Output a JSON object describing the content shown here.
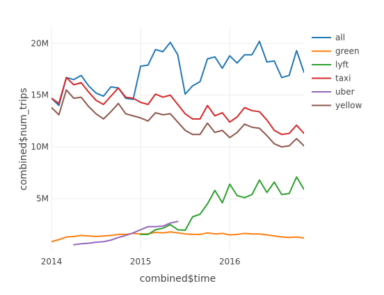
{
  "chart_data": {
    "type": "line",
    "xlabel": "combined$time",
    "ylabel": "combined$num_trips",
    "xlim": [
      "2014-01",
      "2016-11"
    ],
    "ylim": [
      0,
      21500000
    ],
    "x_ticks": [
      {
        "value": "2014-01",
        "label": "2014"
      },
      {
        "value": "2015-01",
        "label": "2015"
      },
      {
        "value": "2016-01",
        "label": "2016"
      }
    ],
    "y_ticks": [
      {
        "value": 5000000,
        "label": "5M"
      },
      {
        "value": 10000000,
        "label": "10M"
      },
      {
        "value": 15000000,
        "label": "15M"
      },
      {
        "value": 20000000,
        "label": "20M"
      }
    ],
    "grid": true,
    "legend": "top-right",
    "series": [
      {
        "name": "all",
        "color": "#1f77b4",
        "points": [
          [
            "2014-01",
            14700000
          ],
          [
            "2014-02",
            14000000
          ],
          [
            "2014-03",
            16700000
          ],
          [
            "2014-04",
            16500000
          ],
          [
            "2014-05",
            16900000
          ],
          [
            "2014-06",
            15900000
          ],
          [
            "2014-07",
            15200000
          ],
          [
            "2014-08",
            14900000
          ],
          [
            "2014-09",
            15800000
          ],
          [
            "2014-10",
            15700000
          ],
          [
            "2014-11",
            14700000
          ],
          [
            "2014-12",
            14600000
          ],
          [
            "2015-01",
            17800000
          ],
          [
            "2015-02",
            17900000
          ],
          [
            "2015-03",
            19400000
          ],
          [
            "2015-04",
            19200000
          ],
          [
            "2015-05",
            20100000
          ],
          [
            "2015-06",
            18900000
          ],
          [
            "2015-07",
            15100000
          ],
          [
            "2015-08",
            15900000
          ],
          [
            "2015-09",
            16300000
          ],
          [
            "2015-10",
            18500000
          ],
          [
            "2015-11",
            18700000
          ],
          [
            "2015-12",
            17600000
          ],
          [
            "2016-01",
            18800000
          ],
          [
            "2016-02",
            18100000
          ],
          [
            "2016-03",
            18900000
          ],
          [
            "2016-04",
            18900000
          ],
          [
            "2016-05",
            20200000
          ],
          [
            "2016-06",
            18200000
          ],
          [
            "2016-07",
            18300000
          ],
          [
            "2016-08",
            16700000
          ],
          [
            "2016-09",
            16900000
          ],
          [
            "2016-10",
            19300000
          ],
          [
            "2016-11",
            17200000
          ],
          [
            "2016-12",
            17900000
          ]
        ]
      },
      {
        "name": "green",
        "color": "#ff7f0e",
        "points": [
          [
            "2014-01",
            850000
          ],
          [
            "2014-02",
            1050000
          ],
          [
            "2014-03",
            1300000
          ],
          [
            "2014-04",
            1350000
          ],
          [
            "2014-05",
            1450000
          ],
          [
            "2014-06",
            1400000
          ],
          [
            "2014-07",
            1350000
          ],
          [
            "2014-08",
            1400000
          ],
          [
            "2014-09",
            1450000
          ],
          [
            "2014-10",
            1550000
          ],
          [
            "2014-11",
            1550000
          ],
          [
            "2014-12",
            1650000
          ],
          [
            "2015-01",
            1600000
          ],
          [
            "2015-02",
            1600000
          ],
          [
            "2015-03",
            1750000
          ],
          [
            "2015-04",
            1700000
          ],
          [
            "2015-05",
            1800000
          ],
          [
            "2015-06",
            1700000
          ],
          [
            "2015-07",
            1600000
          ],
          [
            "2015-08",
            1550000
          ],
          [
            "2015-09",
            1550000
          ],
          [
            "2015-10",
            1700000
          ],
          [
            "2015-11",
            1600000
          ],
          [
            "2015-12",
            1650000
          ],
          [
            "2016-01",
            1500000
          ],
          [
            "2016-02",
            1550000
          ],
          [
            "2016-03",
            1650000
          ],
          [
            "2016-04",
            1600000
          ],
          [
            "2016-05",
            1600000
          ],
          [
            "2016-06",
            1500000
          ],
          [
            "2016-07",
            1400000
          ],
          [
            "2016-08",
            1300000
          ],
          [
            "2016-09",
            1250000
          ],
          [
            "2016-10",
            1300000
          ],
          [
            "2016-11",
            1200000
          ],
          [
            "2016-12",
            1250000
          ]
        ]
      },
      {
        "name": "lyft",
        "color": "#2ca02c",
        "points": [
          [
            "2015-01",
            1550000
          ],
          [
            "2015-02",
            1550000
          ],
          [
            "2015-03",
            2000000
          ],
          [
            "2015-04",
            2150000
          ],
          [
            "2015-05",
            2500000
          ],
          [
            "2015-06",
            2000000
          ],
          [
            "2015-07",
            1950000
          ],
          [
            "2015-08",
            3250000
          ],
          [
            "2015-09",
            3500000
          ],
          [
            "2015-10",
            4500000
          ],
          [
            "2015-11",
            5800000
          ],
          [
            "2015-12",
            4600000
          ],
          [
            "2016-01",
            6400000
          ],
          [
            "2016-02",
            5300000
          ],
          [
            "2016-03",
            5100000
          ],
          [
            "2016-04",
            5400000
          ],
          [
            "2016-05",
            6800000
          ],
          [
            "2016-06",
            5600000
          ],
          [
            "2016-07",
            6600000
          ],
          [
            "2016-08",
            5400000
          ],
          [
            "2016-09",
            5500000
          ],
          [
            "2016-10",
            7100000
          ],
          [
            "2016-11",
            5900000
          ],
          [
            "2016-12",
            6200000
          ]
        ]
      },
      {
        "name": "taxi",
        "color": "#d62728",
        "points": [
          [
            "2014-01",
            14700000
          ],
          [
            "2014-02",
            14200000
          ],
          [
            "2014-03",
            16700000
          ],
          [
            "2014-04",
            16000000
          ],
          [
            "2014-05",
            16200000
          ],
          [
            "2014-06",
            15300000
          ],
          [
            "2014-07",
            14500000
          ],
          [
            "2014-08",
            14100000
          ],
          [
            "2014-09",
            14900000
          ],
          [
            "2014-10",
            15700000
          ],
          [
            "2014-11",
            14800000
          ],
          [
            "2014-12",
            14700000
          ],
          [
            "2015-01",
            14300000
          ],
          [
            "2015-02",
            14100000
          ],
          [
            "2015-03",
            15100000
          ],
          [
            "2015-04",
            14800000
          ],
          [
            "2015-05",
            15000000
          ],
          [
            "2015-06",
            14100000
          ],
          [
            "2015-07",
            13200000
          ],
          [
            "2015-08",
            12700000
          ],
          [
            "2015-09",
            12700000
          ],
          [
            "2015-10",
            14000000
          ],
          [
            "2015-11",
            13000000
          ],
          [
            "2015-12",
            13300000
          ],
          [
            "2016-01",
            12400000
          ],
          [
            "2016-02",
            12900000
          ],
          [
            "2016-03",
            13800000
          ],
          [
            "2016-04",
            13500000
          ],
          [
            "2016-05",
            13400000
          ],
          [
            "2016-06",
            12600000
          ],
          [
            "2016-07",
            11600000
          ],
          [
            "2016-08",
            11200000
          ],
          [
            "2016-09",
            11300000
          ],
          [
            "2016-10",
            12100000
          ],
          [
            "2016-11",
            11300000
          ],
          [
            "2016-12",
            11700000
          ]
        ]
      },
      {
        "name": "uber",
        "color": "#9467bd",
        "points": [
          [
            "2014-04",
            550000
          ],
          [
            "2014-05",
            650000
          ],
          [
            "2014-06",
            700000
          ],
          [
            "2014-07",
            800000
          ],
          [
            "2014-08",
            850000
          ],
          [
            "2014-09",
            1000000
          ],
          [
            "2014-10",
            1250000
          ],
          [
            "2014-11",
            1450000
          ],
          [
            "2014-12",
            1700000
          ],
          [
            "2015-01",
            2000000
          ],
          [
            "2015-02",
            2300000
          ],
          [
            "2015-03",
            2300000
          ],
          [
            "2015-04",
            2350000
          ],
          [
            "2015-05",
            2650000
          ],
          [
            "2015-06",
            2800000
          ]
        ]
      },
      {
        "name": "yellow",
        "color": "#8c564b",
        "points": [
          [
            "2014-01",
            13800000
          ],
          [
            "2014-02",
            13100000
          ],
          [
            "2014-03",
            15500000
          ],
          [
            "2014-04",
            14700000
          ],
          [
            "2014-05",
            14800000
          ],
          [
            "2014-06",
            13900000
          ],
          [
            "2014-07",
            13200000
          ],
          [
            "2014-08",
            12700000
          ],
          [
            "2014-09",
            13400000
          ],
          [
            "2014-10",
            14200000
          ],
          [
            "2014-11",
            13200000
          ],
          [
            "2014-12",
            13000000
          ],
          [
            "2015-01",
            12800000
          ],
          [
            "2015-02",
            12500000
          ],
          [
            "2015-03",
            13300000
          ],
          [
            "2015-04",
            13100000
          ],
          [
            "2015-05",
            13200000
          ],
          [
            "2015-06",
            12400000
          ],
          [
            "2015-07",
            11600000
          ],
          [
            "2015-08",
            11200000
          ],
          [
            "2015-09",
            11200000
          ],
          [
            "2015-10",
            12300000
          ],
          [
            "2015-11",
            11400000
          ],
          [
            "2015-12",
            11600000
          ],
          [
            "2016-01",
            10900000
          ],
          [
            "2016-02",
            11400000
          ],
          [
            "2016-03",
            12200000
          ],
          [
            "2016-04",
            11900000
          ],
          [
            "2016-05",
            11800000
          ],
          [
            "2016-06",
            11100000
          ],
          [
            "2016-07",
            10300000
          ],
          [
            "2016-08",
            10000000
          ],
          [
            "2016-09",
            10100000
          ],
          [
            "2016-10",
            10800000
          ],
          [
            "2016-11",
            10100000
          ],
          [
            "2016-12",
            10400000
          ]
        ]
      }
    ]
  }
}
